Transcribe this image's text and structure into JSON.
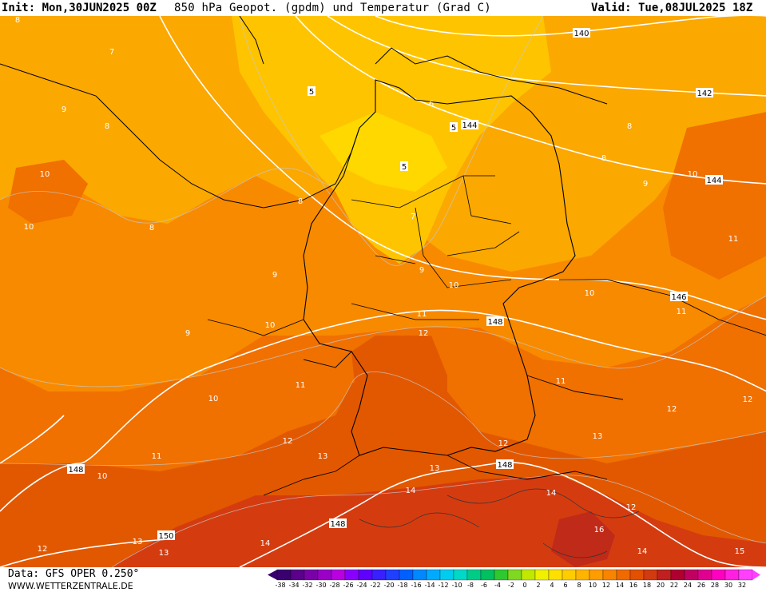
{
  "header": {
    "init": "Init: Mon,30JUN2025 00Z",
    "title": "850 hPa Geopot. (gpdm) und Temperatur (Grad C)",
    "valid": "Valid: Tue,08JUL2025 18Z"
  },
  "footer": {
    "data_source": "Data: GFS OPER 0.250°",
    "website": "WWW.WETTERZENTRALE.DE"
  },
  "scale": {
    "labels": [
      "-38",
      "-34",
      "-32",
      "-30",
      "-28",
      "-26",
      "-24",
      "-22",
      "-20",
      "-18",
      "-16",
      "-14",
      "-12",
      "-10",
      "-8",
      "-6",
      "-4",
      "-2",
      "0",
      "2",
      "4",
      "6",
      "8",
      "10",
      "12",
      "14",
      "16",
      "18",
      "20",
      "22",
      "24",
      "26",
      "28",
      "30",
      "32"
    ],
    "colors": [
      "#3a0070",
      "#5a008a",
      "#7a00a8",
      "#9a00c6",
      "#b800e0",
      "#8a00ff",
      "#6000ff",
      "#3a20ff",
      "#2040ff",
      "#0060ff",
      "#0088ff",
      "#00aaff",
      "#00ccf0",
      "#00d8c8",
      "#00cc88",
      "#00c060",
      "#30c830",
      "#80d820",
      "#c0e800",
      "#f0f000",
      "#ffe000",
      "#ffcc00",
      "#ffb400",
      "#ff9c00",
      "#f88400",
      "#f06a00",
      "#e25000",
      "#d23a10",
      "#c02020",
      "#b00030",
      "#c00060",
      "#e00090",
      "#ff00c0",
      "#ff20e0",
      "#ff40ff"
    ]
  },
  "geopotential_labels": [
    "140",
    "142",
    "144",
    "144",
    "146",
    "148",
    "148",
    "148",
    "148",
    "150",
    "5",
    "5",
    "5"
  ],
  "temperature_labels": [
    "6",
    "7",
    "7",
    "8",
    "8",
    "8",
    "8",
    "8",
    "8",
    "9",
    "9",
    "9",
    "9",
    "9",
    "10",
    "10",
    "10",
    "10",
    "10",
    "10",
    "10",
    "10",
    "11",
    "11",
    "11",
    "11",
    "11",
    "11",
    "12",
    "12",
    "12",
    "12",
    "12",
    "12",
    "12",
    "13",
    "13",
    "13",
    "13",
    "13",
    "14",
    "14",
    "14",
    "14",
    "15",
    "16"
  ]
}
